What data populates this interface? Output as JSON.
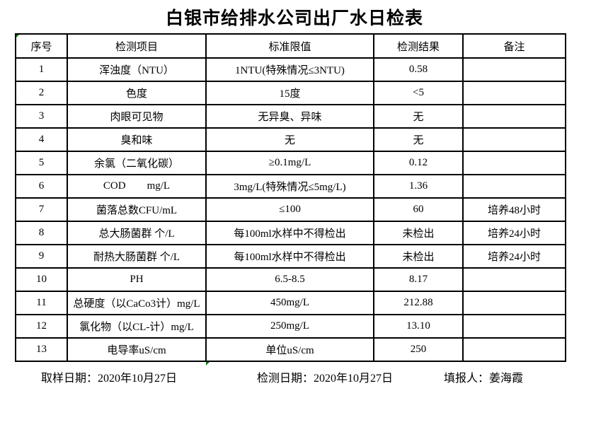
{
  "title": "白银市给排水公司出厂水日检表",
  "colors": {
    "background": "#ffffff",
    "border": "#000000",
    "text": "#000000",
    "error_indicator_green": "#008000"
  },
  "table": {
    "headers": [
      "序号",
      "检测项目",
      "标准限值",
      "检测结果",
      "备注"
    ],
    "rows": [
      {
        "no": "1",
        "item": "浑浊度（NTU）",
        "limit": "1NTU(特殊情况≤3NTU)",
        "result": "0.58",
        "remark": ""
      },
      {
        "no": "2",
        "item": "色度",
        "limit": "15度",
        "result": "<5",
        "remark": ""
      },
      {
        "no": "3",
        "item": "肉眼可见物",
        "limit": "无异臭、异味",
        "result": "无",
        "remark": ""
      },
      {
        "no": "4",
        "item": "臭和味",
        "limit": "无",
        "result": "无",
        "remark": ""
      },
      {
        "no": "5",
        "item": "余氯（二氧化碳）",
        "limit": "≥0.1mg/L",
        "result": "0.12",
        "remark": ""
      },
      {
        "no": "6",
        "item": "COD        mg/L",
        "limit": "3mg/L(特殊情况≤5mg/L)",
        "result": "1.36",
        "remark": ""
      },
      {
        "no": "7",
        "item": "菌落总数CFU/mL",
        "limit": "≤100",
        "result": "60",
        "remark": "培养48小时"
      },
      {
        "no": "8",
        "item": "总大肠菌群 个/L",
        "limit": "每100ml水样中不得检出",
        "result": "未检出",
        "remark": "培养24小时"
      },
      {
        "no": "9",
        "item": "耐热大肠菌群 个/L",
        "limit": "每100ml水样中不得检出",
        "result": "未检出",
        "remark": "培养24小时"
      },
      {
        "no": "10",
        "item": "PH",
        "limit": "6.5-8.5",
        "result": "8.17",
        "remark": ""
      },
      {
        "no": "11",
        "item": "总硬度（以CaCo3计）mg/L",
        "limit": "450mg/L",
        "result": "212.88",
        "remark": ""
      },
      {
        "no": "12",
        "item": "氯化物（以CL-计）mg/L",
        "limit": "250mg/L",
        "result": "13.10",
        "remark": ""
      },
      {
        "no": "13",
        "item": "电导率uS/cm",
        "limit": "单位uS/cm",
        "result": "250",
        "remark": ""
      }
    ]
  },
  "footer": {
    "sample_date": "取样日期：2020年10月27日",
    "test_date": "检测日期：2020年10月27日",
    "reporter": "填报人：姜海霞"
  }
}
